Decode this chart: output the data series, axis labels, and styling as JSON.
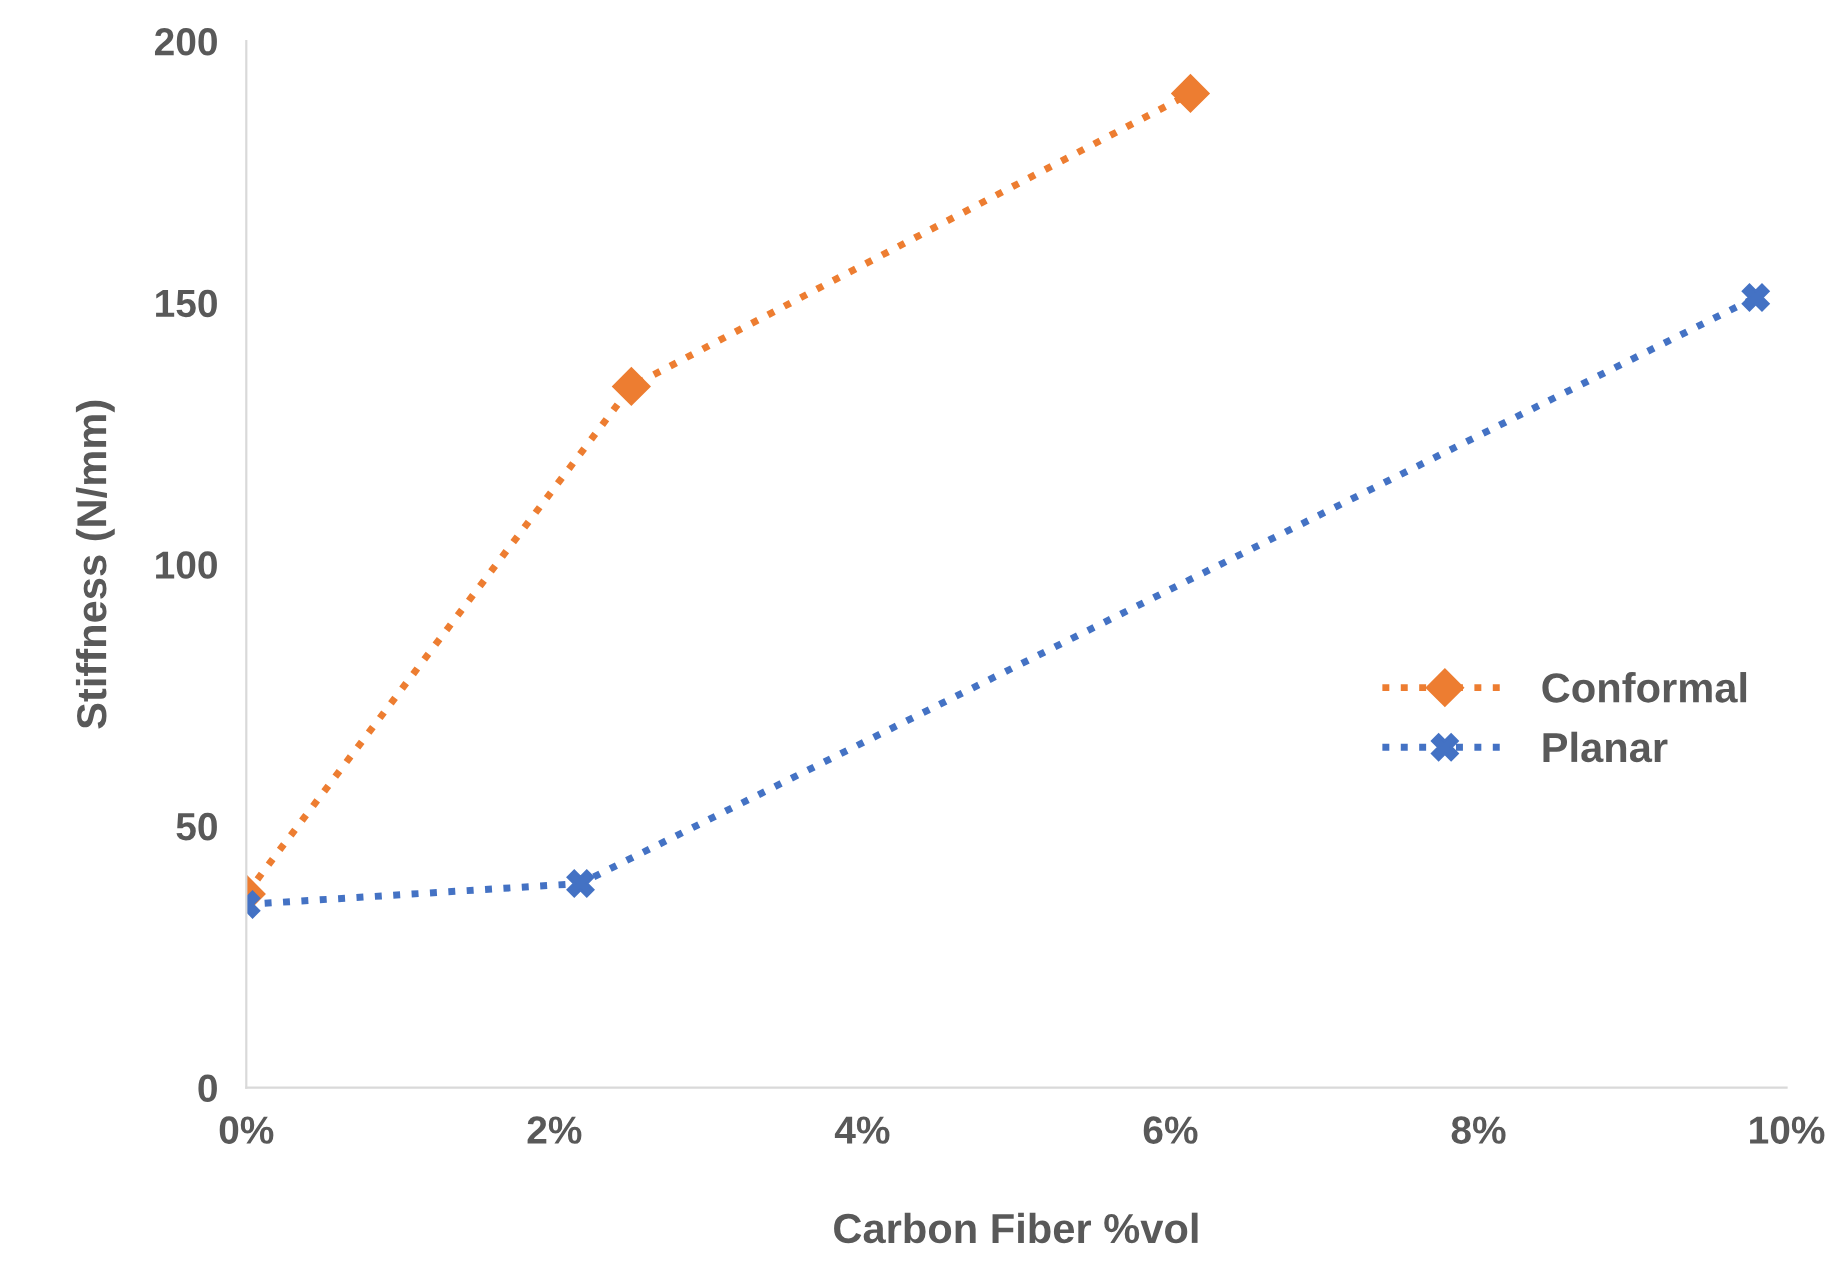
{
  "chart_data": {
    "type": "line",
    "xlabel": "Carbon Fiber %vol",
    "ylabel": "Stiffness (N/mm)",
    "xlim": [
      0,
      10
    ],
    "xticks": [
      {
        "value": 0,
        "label": "0%"
      },
      {
        "value": 2,
        "label": "2%"
      },
      {
        "value": 4,
        "label": "4%"
      },
      {
        "value": 6,
        "label": "6%"
      },
      {
        "value": 8,
        "label": "8%"
      },
      {
        "value": 10,
        "label": "10%"
      }
    ],
    "ylim": [
      0,
      200
    ],
    "yticks": [
      0,
      50,
      100,
      150,
      200
    ],
    "grid": false,
    "legend": "right",
    "line_style": "dotted",
    "series": [
      {
        "name": "Conformal",
        "color": "#ed7d31",
        "marker": "diamond",
        "x": [
          0,
          2.5,
          6.13
        ],
        "values": [
          37,
          134,
          190
        ]
      },
      {
        "name": "Planar",
        "color": "#4472c4",
        "marker": "cross",
        "x": [
          0,
          2.17,
          9.8
        ],
        "values": [
          35,
          39,
          151
        ]
      }
    ]
  }
}
